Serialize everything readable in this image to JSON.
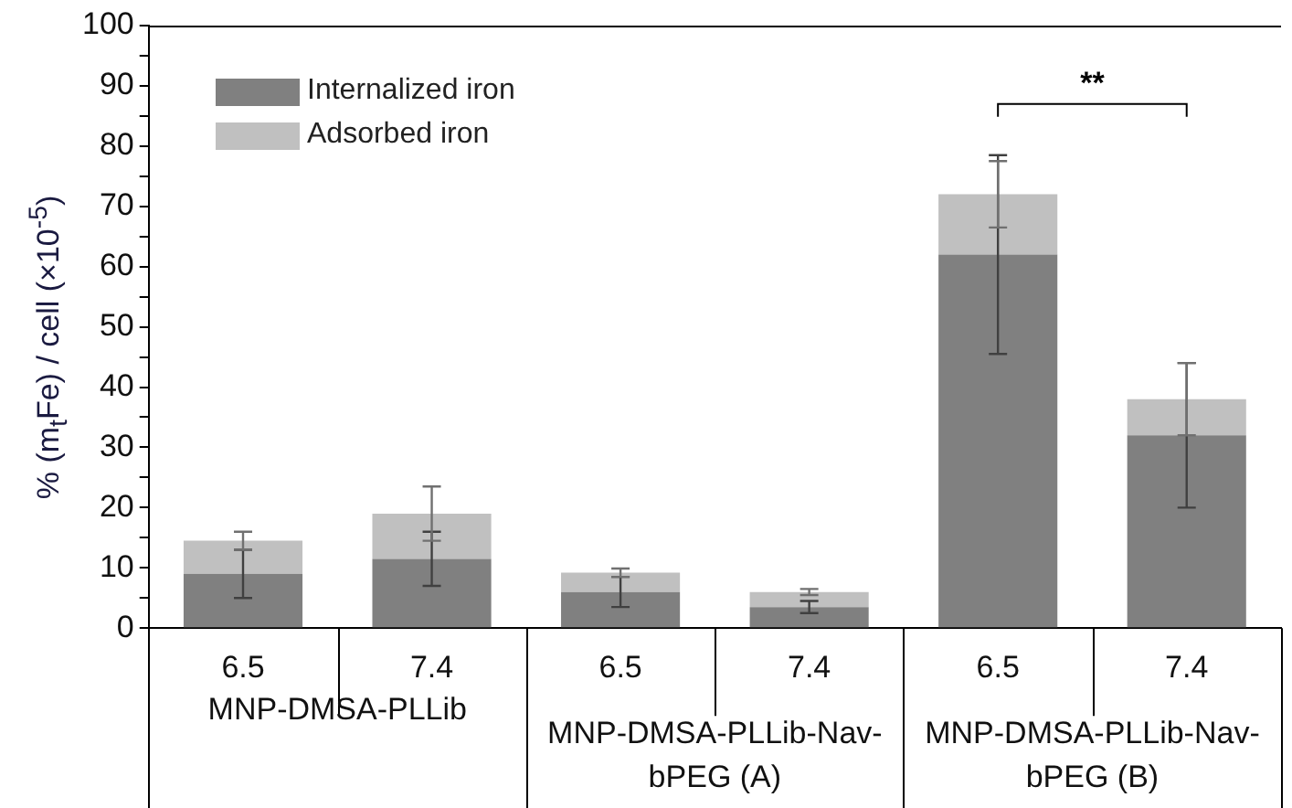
{
  "chart_data": {
    "type": "bar",
    "stacked": true,
    "ylabel": "% (m$_{t}$Fe) / cell (×10$^{-5}$)",
    "categories": [
      "6.5",
      "7.4",
      "6.5",
      "7.4",
      "6.5",
      "7.4"
    ],
    "series": [
      {
        "name": "Internalized iron",
        "color": "#808080",
        "values": [
          9,
          11.5,
          6,
          3.5,
          62,
          32
        ],
        "errors": [
          4,
          4.5,
          2.5,
          1,
          16.5,
          12
        ]
      },
      {
        "name": "Adsorbed iron",
        "color": "#c0c0c0",
        "values": [
          5.5,
          7.5,
          3.2,
          2.5,
          10,
          6
        ],
        "errors": [
          1.5,
          4.5,
          0.7,
          0.5,
          5.5,
          6
        ]
      }
    ],
    "ylim": [
      0,
      100
    ],
    "yticks": [
      0,
      {
        "value": 5,
        "label": null
      },
      10,
      {
        "value": 15,
        "label": null
      },
      20,
      {
        "value": 25,
        "label": null
      },
      30,
      {
        "value": 35,
        "label": null
      },
      40,
      {
        "value": 45,
        "label": null
      },
      50,
      {
        "value": 55,
        "label": null
      },
      60,
      {
        "value": 65,
        "label": null
      },
      70,
      {
        "value": 75,
        "label": null
      },
      80,
      {
        "value": 85,
        "label": null
      },
      90,
      {
        "value": 95,
        "label": null
      },
      100
    ],
    "legend": "top left",
    "grid": false,
    "annotations": [
      "**",
      "MNP-DMSA-PLLib",
      "MNP-DMSA-PLLib-Nav-bPEG (A)",
      "MNP-DMSA-PLLib-Nav-bPEG (B)"
    ]
  }
}
